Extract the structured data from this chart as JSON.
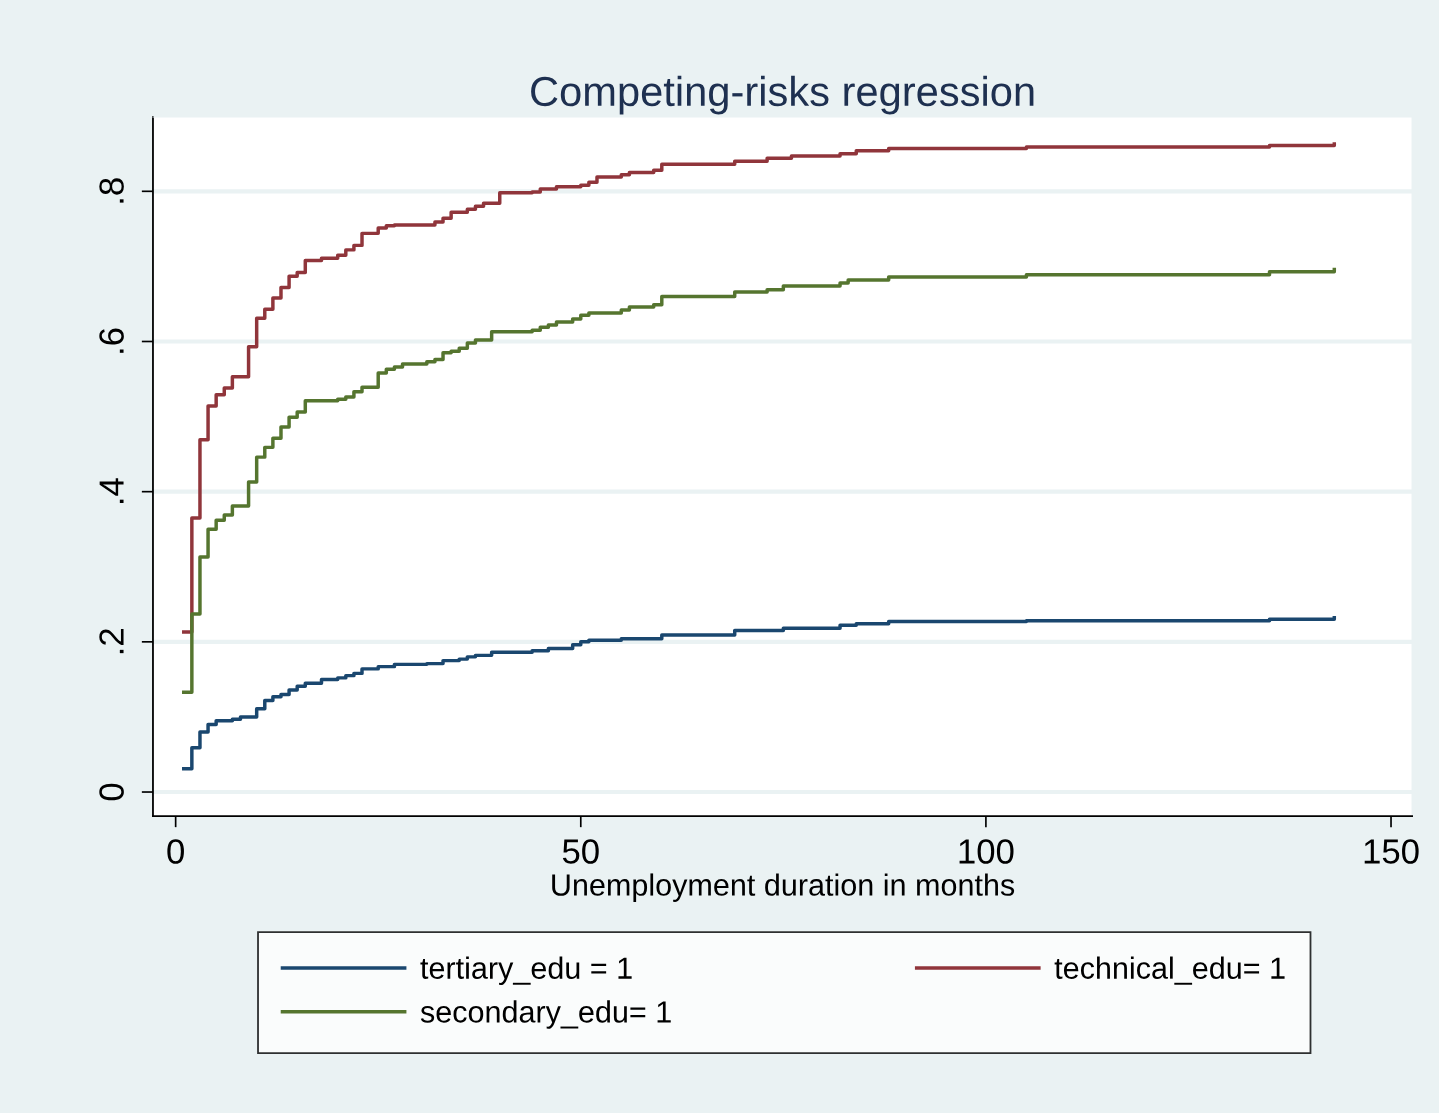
{
  "chart_data": {
    "type": "step",
    "title": "Competing-risks regression",
    "xlabel": "Unemployment duration in months",
    "xlim": [
      -2.8,
      152.6
    ],
    "ylim": [
      -0.032,
      0.899
    ],
    "xticks": [
      0,
      50,
      100,
      150
    ],
    "yticks": [
      {
        "value": 0,
        "label": "0"
      },
      {
        "value": 0.2,
        "label": ".2"
      },
      {
        "value": 0.4,
        "label": ".4"
      },
      {
        "value": 0.6,
        "label": ".6"
      },
      {
        "value": 0.8,
        "label": ".8"
      }
    ],
    "grid": "y",
    "legend": "bottom",
    "line_style": "solid",
    "marker": "none",
    "series": [
      {
        "name": "tertiary_edu = 1",
        "color": "#1a476f",
        "x": [
          1,
          2,
          3,
          4,
          5,
          7,
          8,
          10,
          11,
          12,
          13,
          14,
          15,
          16,
          18,
          20,
          21,
          22,
          23,
          25,
          27,
          31,
          33,
          35,
          36,
          37,
          39,
          44,
          46,
          49,
          50,
          51,
          55,
          60,
          69,
          75,
          82,
          84,
          88,
          105,
          135,
          143
        ],
        "values": [
          0.031,
          0.059,
          0.08,
          0.09,
          0.095,
          0.097,
          0.1,
          0.111,
          0.122,
          0.127,
          0.13,
          0.136,
          0.141,
          0.145,
          0.15,
          0.152,
          0.155,
          0.158,
          0.164,
          0.167,
          0.17,
          0.171,
          0.175,
          0.177,
          0.18,
          0.182,
          0.186,
          0.188,
          0.191,
          0.196,
          0.2,
          0.202,
          0.204,
          0.209,
          0.215,
          0.218,
          0.222,
          0.224,
          0.227,
          0.228,
          0.23,
          0.232
        ]
      },
      {
        "name": "technical_edu= 1",
        "color": "#90353b",
        "x": [
          1,
          2,
          3,
          4,
          5,
          6,
          7,
          9,
          10,
          11,
          12,
          13,
          14,
          15,
          16,
          18,
          20,
          21,
          22,
          23,
          25,
          26,
          27,
          32,
          33,
          34,
          36,
          37,
          38,
          40,
          44,
          45,
          47,
          50,
          51,
          52,
          55,
          56,
          59,
          60,
          69,
          73,
          76,
          82,
          84,
          88,
          105,
          135,
          143
        ],
        "values": [
          0.213,
          0.365,
          0.469,
          0.514,
          0.529,
          0.538,
          0.553,
          0.593,
          0.631,
          0.643,
          0.658,
          0.672,
          0.687,
          0.692,
          0.708,
          0.711,
          0.715,
          0.722,
          0.728,
          0.744,
          0.751,
          0.754,
          0.755,
          0.759,
          0.764,
          0.772,
          0.776,
          0.78,
          0.784,
          0.798,
          0.799,
          0.803,
          0.806,
          0.808,
          0.812,
          0.819,
          0.822,
          0.825,
          0.828,
          0.836,
          0.84,
          0.844,
          0.847,
          0.85,
          0.854,
          0.857,
          0.859,
          0.861,
          0.863
        ]
      },
      {
        "name": "secondary_edu= 1",
        "color": "#55752f",
        "x": [
          1,
          2,
          3,
          4,
          5,
          6,
          7,
          9,
          10,
          11,
          12,
          13,
          14,
          15,
          16,
          20,
          21,
          22,
          23,
          25,
          26,
          27,
          28,
          31,
          32,
          33,
          34,
          35,
          36,
          37,
          39,
          44,
          45,
          46,
          47,
          49,
          50,
          51,
          55,
          56,
          59,
          60,
          69,
          73,
          75,
          82,
          83,
          88,
          105,
          135,
          143
        ],
        "values": [
          0.133,
          0.237,
          0.313,
          0.35,
          0.362,
          0.369,
          0.381,
          0.413,
          0.446,
          0.459,
          0.471,
          0.486,
          0.499,
          0.506,
          0.521,
          0.523,
          0.526,
          0.533,
          0.539,
          0.558,
          0.563,
          0.566,
          0.57,
          0.573,
          0.576,
          0.585,
          0.587,
          0.591,
          0.598,
          0.602,
          0.613,
          0.615,
          0.619,
          0.622,
          0.626,
          0.63,
          0.635,
          0.638,
          0.642,
          0.646,
          0.649,
          0.66,
          0.666,
          0.669,
          0.674,
          0.678,
          0.682,
          0.686,
          0.689,
          0.693,
          0.696
        ]
      }
    ]
  }
}
